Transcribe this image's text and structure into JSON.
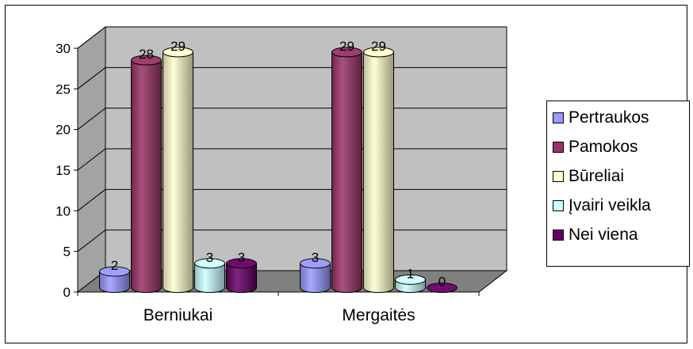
{
  "chart_data": {
    "type": "bar",
    "style": "3d-cylinder",
    "categories": [
      "Berniukai",
      "Mergaitės"
    ],
    "series": [
      {
        "name": "Pertraukos",
        "values": [
          2,
          3
        ],
        "color": "#9999FF"
      },
      {
        "name": "Pamokos",
        "values": [
          28,
          29
        ],
        "color": "#993366"
      },
      {
        "name": "Būreliai",
        "values": [
          29,
          29
        ],
        "color": "#FFFFCC"
      },
      {
        "name": "Įvairi veikla",
        "values": [
          3,
          1
        ],
        "color": "#CCFFFF"
      },
      {
        "name": "Nei viena",
        "values": [
          3,
          0
        ],
        "color": "#660066"
      }
    ],
    "y_ticks": [
      "0",
      "5",
      "10",
      "15",
      "20",
      "25",
      "30"
    ],
    "ylim": [
      0,
      30
    ],
    "grid": true,
    "legend_position": "right",
    "wall_color": "#C0C0C0",
    "floor_color": "#808080"
  }
}
